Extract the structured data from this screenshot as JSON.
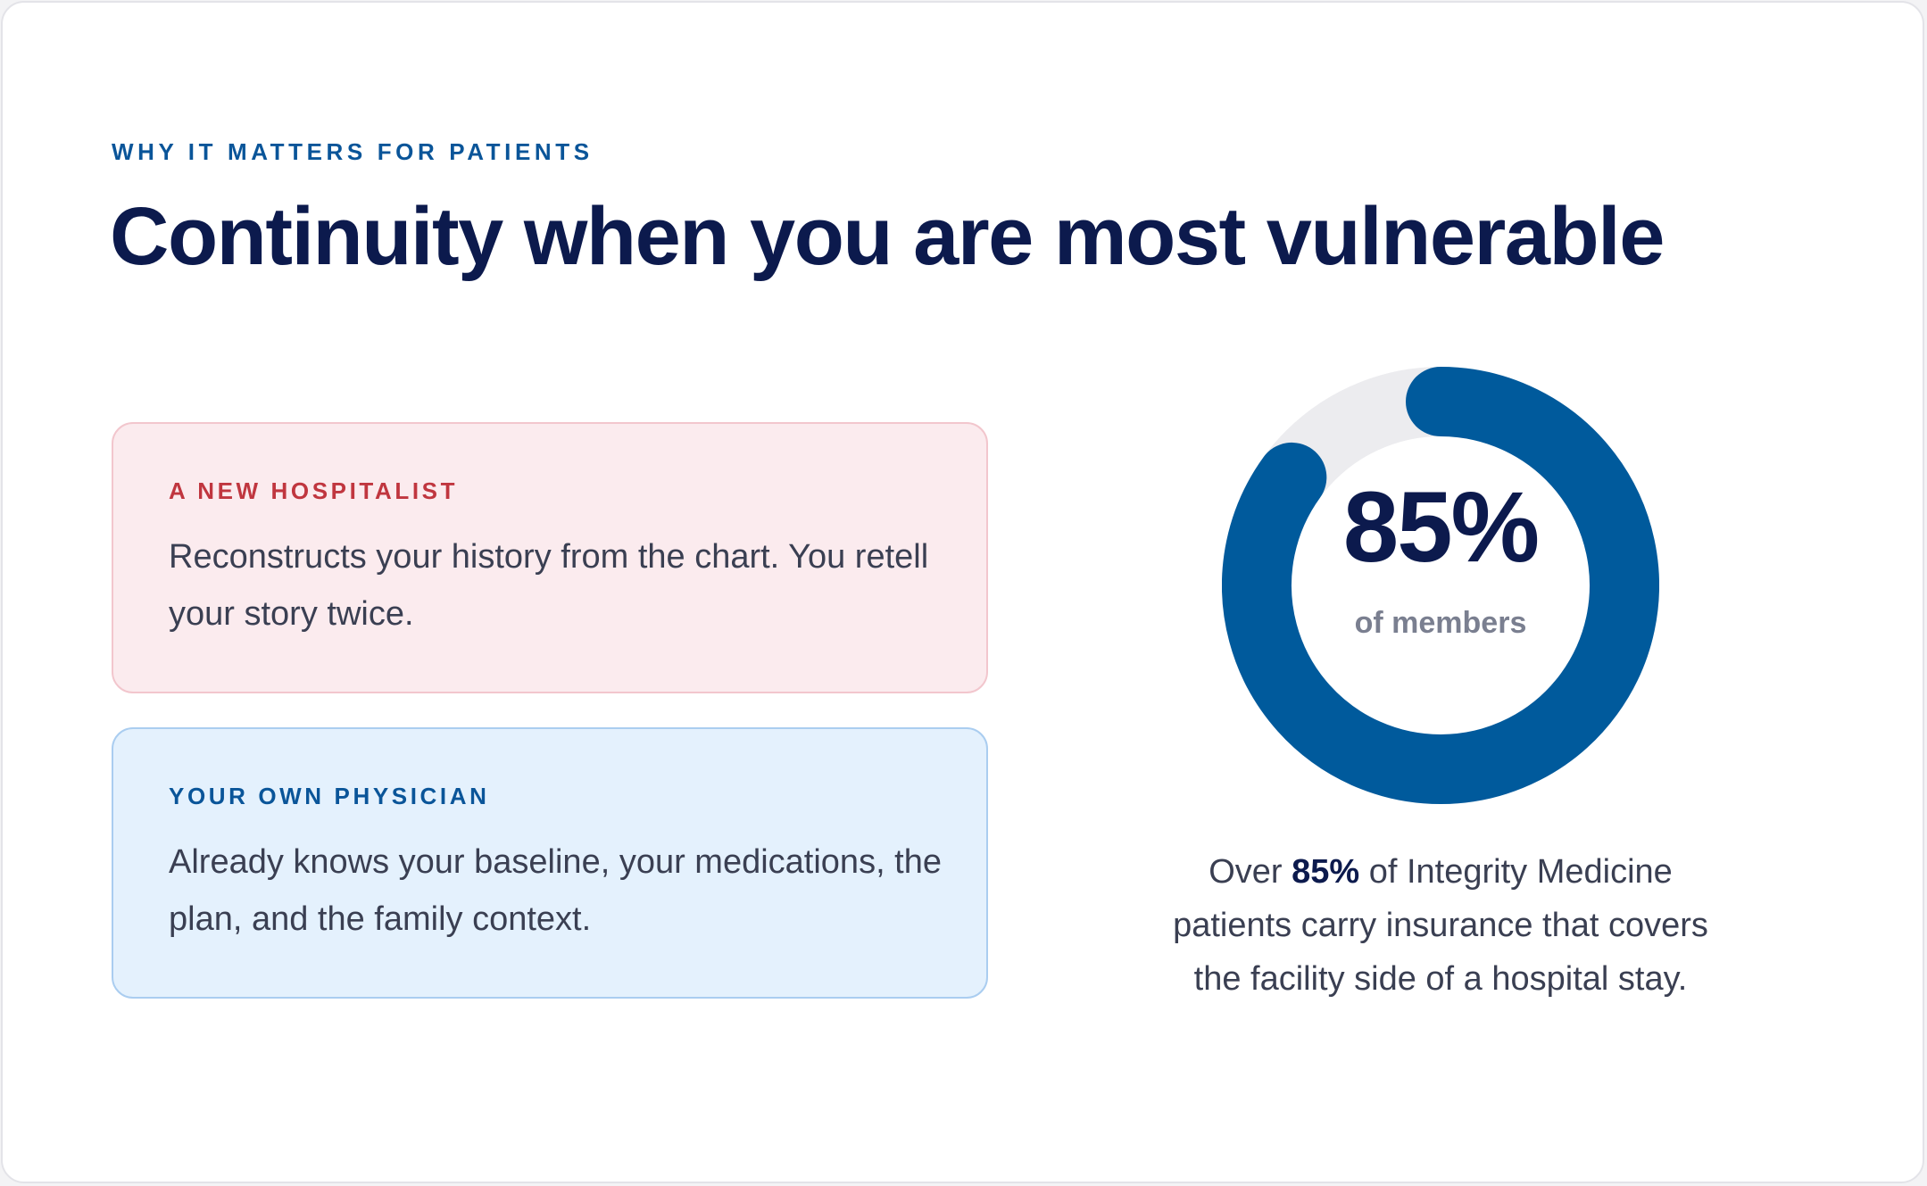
{
  "header": {
    "eyebrow": "WHY IT MATTERS FOR PATIENTS",
    "title": "Continuity when you are most vulnerable"
  },
  "comparison": {
    "hospitalist": {
      "label": "A NEW HOSPITALIST",
      "text": "Reconstructs your history from the chart. You retell your story twice."
    },
    "physician": {
      "label": "YOUR OWN PHYSICIAN",
      "text": "Already knows your baseline, your medications, the plan, and the family context."
    }
  },
  "stat": {
    "value": "85%",
    "fraction": 0.85,
    "caption": "of members",
    "summary_prefix": "Over ",
    "summary_highlight": "85%",
    "summary_suffix": " of Integrity Medicine patients carry insurance that covers the facility side of a hospital stay."
  },
  "colors": {
    "accent": "#005a9c",
    "track": "#ececef",
    "heading": "#0c1a4d",
    "hospitalist_bg": "#fbebee",
    "physician_bg": "#e4f1fd"
  }
}
